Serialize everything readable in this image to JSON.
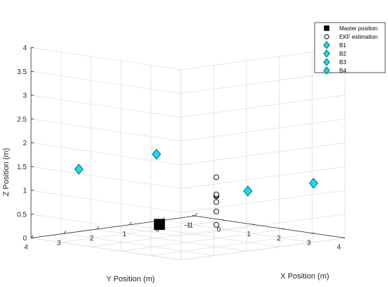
{
  "chart_data": {
    "type": "scatter3d",
    "xlabel": "X Position (m)",
    "ylabel": "Y Position (m)",
    "zlabel": "Z Position (m)",
    "xlim": [
      -1,
      4
    ],
    "ylim": [
      -1,
      4
    ],
    "zlim": [
      0,
      4
    ],
    "xticks": [
      "-1",
      "0",
      "1",
      "2",
      "3",
      "4"
    ],
    "yticks": [
      "-1",
      "0",
      "1",
      "2",
      "3",
      "4"
    ],
    "zticks": [
      "0",
      "0.5",
      "1",
      "1.5",
      "2",
      "2.5",
      "3",
      "3.5",
      "4"
    ],
    "grid": true,
    "legend_position": "top-right",
    "series": [
      {
        "name": "Master position",
        "marker": "square",
        "color": "#000000",
        "points": [
          [
            0.0,
            1.0,
            0.1
          ]
        ]
      },
      {
        "name": "EKF estimation",
        "marker": "circle",
        "color": "#000000",
        "points": [
          [
            1.35,
            0.5,
            0.17
          ],
          [
            1.35,
            0.5,
            0.45
          ],
          [
            1.35,
            0.5,
            0.65
          ],
          [
            1.35,
            0.5,
            0.77
          ],
          [
            1.35,
            0.5,
            0.79
          ],
          [
            1.35,
            0.5,
            0.81
          ],
          [
            1.35,
            0.5,
            1.17
          ]
        ]
      },
      {
        "name": "B1",
        "marker": "diamond",
        "color": "#00e5ff",
        "points": [
          [
            -0.5,
            3.0,
            1.4
          ]
        ]
      },
      {
        "name": "B2",
        "marker": "diamond",
        "color": "#00e5ff",
        "points": [
          [
            1.05,
            2.05,
            1.77
          ]
        ]
      },
      {
        "name": "B3",
        "marker": "diamond",
        "color": "#00e5ff",
        "points": [
          [
            1.8,
            -0.05,
            0.87
          ]
        ]
      },
      {
        "name": "B4",
        "marker": "diamond",
        "color": "#00e5ff",
        "points": [
          [
            3.5,
            -0.5,
            1.15
          ]
        ]
      }
    ]
  }
}
